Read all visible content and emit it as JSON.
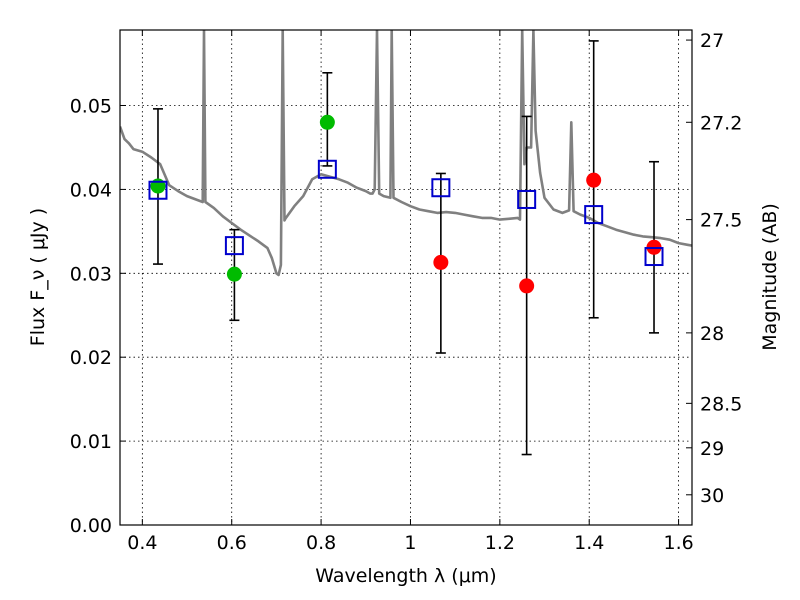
{
  "chart_data": {
    "type": "scatter",
    "xlabel": "Wavelength  λ (μm)",
    "ylabel_left": "Flux  F_ν  ( μJy )",
    "ylabel_right": "Magnitude (AB)",
    "xlim": [
      0.35,
      1.63
    ],
    "ylim": [
      0.0,
      0.059
    ],
    "grid": true,
    "x_ticks": [
      0.4,
      0.6,
      0.8,
      1.0,
      1.2,
      1.4,
      1.6
    ],
    "x_tick_labels": [
      "0.4",
      "0.6",
      "0.8",
      "1",
      "1.2",
      "1.4",
      "1.6"
    ],
    "y_ticks": [
      0.0,
      0.01,
      0.02,
      0.03,
      0.04,
      0.05
    ],
    "y_tick_labels": [
      "0.00",
      "0.01",
      "0.02",
      "0.03",
      "0.04",
      "0.05"
    ],
    "right_ticks": [
      {
        "label": "27",
        "flux": 0.0578
      },
      {
        "label": "27.2",
        "flux": 0.048
      },
      {
        "label": "27.5",
        "flux": 0.0364
      },
      {
        "label": "28",
        "flux": 0.0229
      },
      {
        "label": "28.5",
        "flux": 0.0145
      },
      {
        "label": "29",
        "flux": 0.0092
      },
      {
        "label": "30",
        "flux": 0.0036
      }
    ],
    "series": [
      {
        "marker": "circle",
        "color": "#00bb00",
        "points": [
          {
            "x": 0.435,
            "y": 0.0404
          },
          {
            "x": 0.606,
            "y": 0.0299
          },
          {
            "x": 0.814,
            "y": 0.048
          }
        ]
      },
      {
        "marker": "circle",
        "color": "#ff0000",
        "points": [
          {
            "x": 1.068,
            "y": 0.0313
          },
          {
            "x": 1.26,
            "y": 0.0285
          },
          {
            "x": 1.41,
            "y": 0.0411
          },
          {
            "x": 1.545,
            "y": 0.0331
          }
        ]
      },
      {
        "marker": "open-square",
        "color": "#0000cc",
        "points": [
          {
            "x": 0.435,
            "y": 0.0399
          },
          {
            "x": 0.606,
            "y": 0.0333
          },
          {
            "x": 0.814,
            "y": 0.0424
          },
          {
            "x": 1.068,
            "y": 0.0402
          },
          {
            "x": 1.26,
            "y": 0.0388
          },
          {
            "x": 1.41,
            "y": 0.037
          },
          {
            "x": 1.545,
            "y": 0.032
          }
        ]
      }
    ],
    "error_bars": [
      {
        "x": 0.435,
        "low": 0.0311,
        "high": 0.0496
      },
      {
        "x": 0.606,
        "low": 0.0244,
        "high": 0.0352
      },
      {
        "x": 0.814,
        "low": 0.0428,
        "high": 0.0539
      },
      {
        "x": 1.068,
        "low": 0.0205,
        "high": 0.0419
      },
      {
        "x": 1.26,
        "low": 0.0084,
        "high": 0.0487
      },
      {
        "x": 1.41,
        "low": 0.0247,
        "high": 0.0577
      },
      {
        "x": 1.545,
        "low": 0.0229,
        "high": 0.0433
      }
    ],
    "model_spectrum": {
      "color": "#808080",
      "points": [
        [
          0.35,
          0.0475
        ],
        [
          0.36,
          0.046
        ],
        [
          0.37,
          0.0455
        ],
        [
          0.38,
          0.0448
        ],
        [
          0.4,
          0.0445
        ],
        [
          0.42,
          0.0438
        ],
        [
          0.44,
          0.043
        ],
        [
          0.46,
          0.0405
        ],
        [
          0.48,
          0.0398
        ],
        [
          0.5,
          0.0392
        ],
        [
          0.52,
          0.0388
        ],
        [
          0.535,
          0.0385
        ],
        [
          0.538,
          0.059
        ],
        [
          0.541,
          0.0385
        ],
        [
          0.56,
          0.0378
        ],
        [
          0.58,
          0.0368
        ],
        [
          0.6,
          0.036
        ],
        [
          0.62,
          0.0352
        ],
        [
          0.64,
          0.0345
        ],
        [
          0.66,
          0.0338
        ],
        [
          0.68,
          0.033
        ],
        [
          0.69,
          0.0318
        ],
        [
          0.7,
          0.03
        ],
        [
          0.705,
          0.0298
        ],
        [
          0.71,
          0.031
        ],
        [
          0.714,
          0.059
        ],
        [
          0.718,
          0.0363
        ],
        [
          0.72,
          0.0365
        ],
        [
          0.74,
          0.038
        ],
        [
          0.76,
          0.0392
        ],
        [
          0.78,
          0.0412
        ],
        [
          0.8,
          0.0418
        ],
        [
          0.82,
          0.0415
        ],
        [
          0.84,
          0.0412
        ],
        [
          0.86,
          0.0408
        ],
        [
          0.88,
          0.0402
        ],
        [
          0.9,
          0.0398
        ],
        [
          0.91,
          0.0395
        ],
        [
          0.915,
          0.0395
        ],
        [
          0.92,
          0.04
        ],
        [
          0.925,
          0.059
        ],
        [
          0.93,
          0.0395
        ],
        [
          0.94,
          0.0392
        ],
        [
          0.955,
          0.039
        ],
        [
          0.958,
          0.059
        ],
        [
          0.962,
          0.039
        ],
        [
          0.98,
          0.0385
        ],
        [
          1.0,
          0.038
        ],
        [
          1.02,
          0.0376
        ],
        [
          1.04,
          0.0374
        ],
        [
          1.06,
          0.0372
        ],
        [
          1.08,
          0.0373
        ],
        [
          1.1,
          0.0372
        ],
        [
          1.12,
          0.037
        ],
        [
          1.14,
          0.0368
        ],
        [
          1.16,
          0.0366
        ],
        [
          1.18,
          0.0366
        ],
        [
          1.2,
          0.0364
        ],
        [
          1.22,
          0.0365
        ],
        [
          1.24,
          0.0366
        ],
        [
          1.245,
          0.0364
        ],
        [
          1.25,
          0.059
        ],
        [
          1.255,
          0.043
        ],
        [
          1.26,
          0.045
        ],
        [
          1.27,
          0.045
        ],
        [
          1.275,
          0.059
        ],
        [
          1.28,
          0.047
        ],
        [
          1.29,
          0.042
        ],
        [
          1.3,
          0.039
        ],
        [
          1.32,
          0.0376
        ],
        [
          1.34,
          0.0372
        ],
        [
          1.355,
          0.0375
        ],
        [
          1.36,
          0.048
        ],
        [
          1.365,
          0.0374
        ],
        [
          1.38,
          0.037
        ],
        [
          1.4,
          0.0366
        ],
        [
          1.42,
          0.036
        ],
        [
          1.44,
          0.0356
        ],
        [
          1.46,
          0.0352
        ],
        [
          1.48,
          0.0349
        ],
        [
          1.5,
          0.0346
        ],
        [
          1.52,
          0.0344
        ],
        [
          1.54,
          0.0343
        ],
        [
          1.56,
          0.0342
        ],
        [
          1.58,
          0.034
        ],
        [
          1.6,
          0.0336
        ],
        [
          1.62,
          0.0334
        ],
        [
          1.63,
          0.0333
        ]
      ]
    }
  }
}
